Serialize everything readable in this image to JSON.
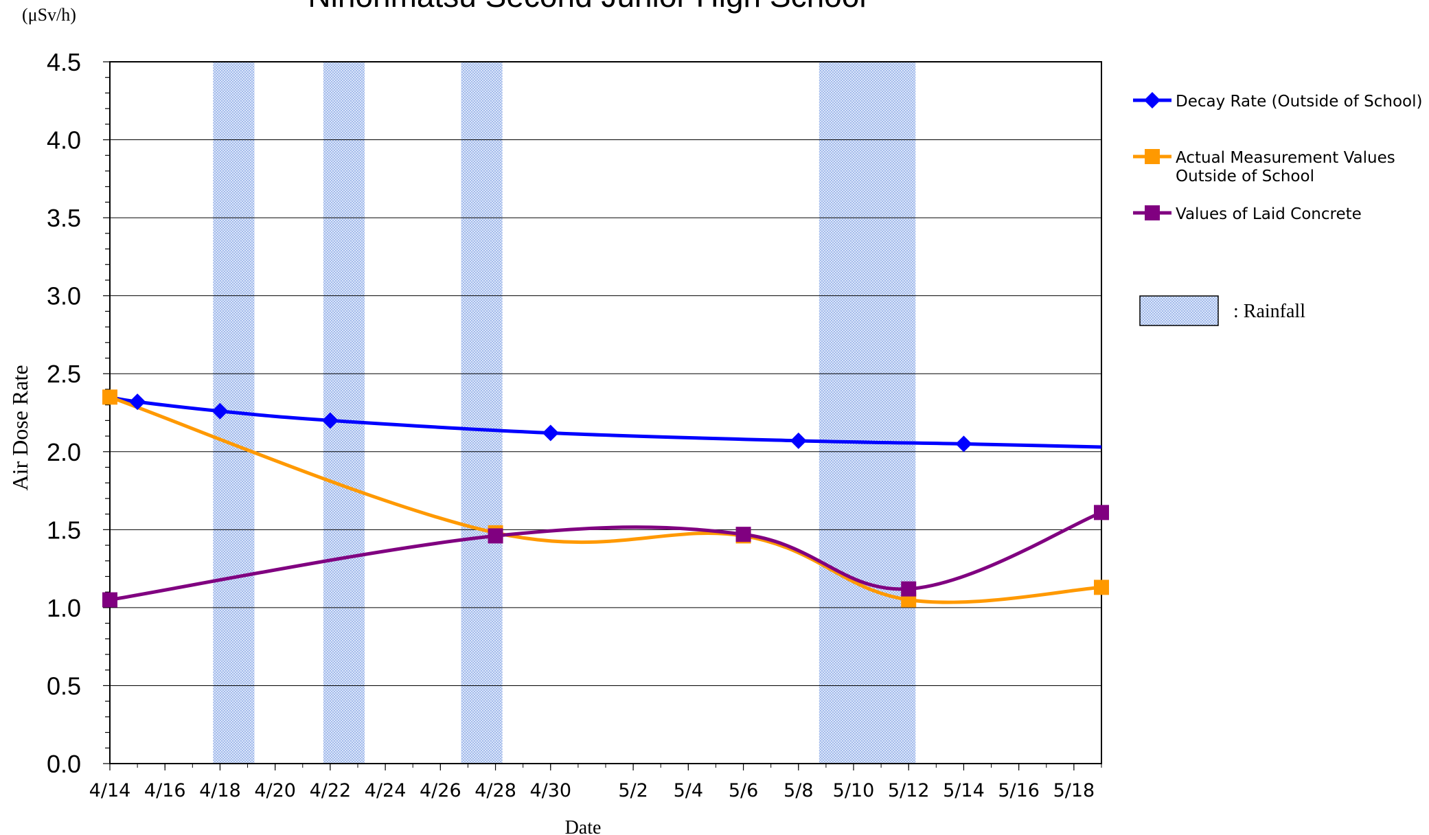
{
  "chart_data": {
    "type": "line",
    "title": "Nihonmatsu Second Junior High School",
    "unit_label": "(μSv/h)",
    "ylabel": "Air Dose Rate",
    "xlabel": "Date",
    "ylim": [
      0,
      4.5
    ],
    "xlim": [
      "4/14",
      "5/19"
    ],
    "grid": true,
    "legend_position": "right",
    "y_ticks": [
      "0.0",
      "0.5",
      "1.0",
      "1.5",
      "2.0",
      "2.5",
      "3.0",
      "3.5",
      "4.0",
      "4.5"
    ],
    "x_ticks": [
      "4/14",
      "4/16",
      "4/18",
      "4/20",
      "4/22",
      "4/24",
      "4/26",
      "4/28",
      "4/30",
      "5/2",
      "5/4",
      "5/6",
      "5/8",
      "5/10",
      "5/12",
      "5/14",
      "5/16",
      "5/18"
    ],
    "series": [
      {
        "name": "Decay Rate (Outside of School)",
        "color": "#0000ff",
        "marker": "diamond",
        "points": [
          {
            "x": "4/14",
            "y": 2.35
          },
          {
            "x": "4/15",
            "y": 2.32
          },
          {
            "x": "4/18",
            "y": 2.26
          },
          {
            "x": "4/22",
            "y": 2.2
          },
          {
            "x": "4/30",
            "y": 2.12
          },
          {
            "x": "5/8",
            "y": 2.07
          },
          {
            "x": "5/14",
            "y": 2.05
          },
          {
            "x": "5/19",
            "y": 2.03
          }
        ],
        "marker_dates": [
          "4/15",
          "4/18",
          "4/22",
          "4/30",
          "5/8",
          "5/14"
        ]
      },
      {
        "name": "Actual Measurement Values Outside of School",
        "color": "#ff9900",
        "marker": "square",
        "points": [
          {
            "x": "4/14",
            "y": 2.35
          },
          {
            "x": "4/28",
            "y": 1.48
          },
          {
            "x": "5/6",
            "y": 1.46
          },
          {
            "x": "5/12",
            "y": 1.05
          },
          {
            "x": "5/19",
            "y": 1.13
          }
        ]
      },
      {
        "name": "Values of Laid Concrete",
        "color": "#800080",
        "marker": "square",
        "points": [
          {
            "x": "4/14",
            "y": 1.05
          },
          {
            "x": "4/28",
            "y": 1.46
          },
          {
            "x": "5/6",
            "y": 1.47
          },
          {
            "x": "5/12",
            "y": 1.12
          },
          {
            "x": "5/19",
            "y": 1.61
          }
        ]
      }
    ],
    "rainfall_periods": [
      [
        "4/18",
        "4/19"
      ],
      [
        "4/22",
        "4/23"
      ],
      [
        "4/27",
        "4/28"
      ],
      [
        "5/9",
        "5/12"
      ]
    ],
    "rainfall_color": "#c8d8f4",
    "rainfall_legend_label": ": Rainfall",
    "legend_entries": [
      {
        "lines": [
          "Decay Rate (Outside of School)"
        ],
        "color": "#0000ff",
        "marker": "diamond"
      },
      {
        "lines": [
          "Actual Measurement Values",
          "Outside of School"
        ],
        "color": "#ff9900",
        "marker": "square"
      },
      {
        "lines": [
          "Values of Laid Concrete"
        ],
        "color": "#800080",
        "marker": "square"
      }
    ]
  }
}
